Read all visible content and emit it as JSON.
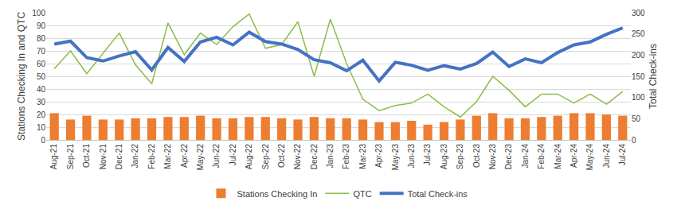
{
  "chart_data": {
    "type": "combo",
    "categories": [
      "Aug-21",
      "Sep-21",
      "Oct-21",
      "Nov-21",
      "Dec-21",
      "Jan-22",
      "Feb-22",
      "Mar-22",
      "Apr-22",
      "May-22",
      "Jun-22",
      "Jul-22",
      "Aug-22",
      "Sep-22",
      "Oct-22",
      "Nov-22",
      "Dec-22",
      "Jan-23",
      "Feb-23",
      "Mar-23",
      "Apr-23",
      "May-23",
      "Jun-23",
      "Jul-23",
      "Aug-23",
      "Sep-23",
      "Oct-23",
      "Nov-23",
      "Dec-23",
      "Jan-24",
      "Feb-24",
      "Mar-24",
      "Apr-24",
      "May-24",
      "Jun-24",
      "Jul-24"
    ],
    "y_label": "Stations Checking In and QTC",
    "y2_label": "Total Check-ins",
    "ylim": [
      0,
      100
    ],
    "yticks": [
      0,
      10,
      20,
      30,
      40,
      50,
      60,
      70,
      80,
      90,
      100
    ],
    "y2lim": [
      0,
      300
    ],
    "y2ticks": [
      0,
      50,
      100,
      150,
      200,
      250,
      300
    ],
    "grid": true,
    "legend": "bottom",
    "series": [
      {
        "name": "Stations Checking In",
        "type": "bar",
        "color": "#ed7d31",
        "axis": "y",
        "values": [
          21,
          16,
          19,
          16,
          16,
          17,
          17,
          18,
          18,
          19,
          17,
          17,
          18,
          18,
          17,
          16,
          18,
          17,
          17,
          16,
          14,
          14,
          15,
          12,
          14,
          16,
          19,
          21,
          17,
          17,
          18,
          19,
          21,
          21,
          20,
          19
        ]
      },
      {
        "name": "QTC",
        "type": "line",
        "color": "#8cbd4a",
        "axis": "y",
        "line_style": "solid",
        "values": [
          56,
          70,
          52,
          68,
          84,
          59,
          44,
          92,
          67,
          84,
          75,
          89,
          99,
          72,
          75,
          93,
          50,
          95,
          60,
          32,
          23,
          27,
          29,
          36,
          26,
          18,
          30,
          50,
          39,
          26,
          36,
          36,
          29,
          36,
          28,
          38
        ]
      },
      {
        "name": "Total Check-ins",
        "type": "line",
        "color": "#4472c4",
        "axis": "y2",
        "line_style": "solid",
        "values": [
          226,
          233,
          194,
          186,
          198,
          208,
          165,
          218,
          185,
          231,
          242,
          224,
          254,
          232,
          226,
          213,
          189,
          182,
          163,
          188,
          139,
          183,
          176,
          164,
          175,
          167,
          180,
          207,
          173,
          191,
          182,
          206,
          224,
          231,
          249,
          264
        ]
      }
    ]
  }
}
